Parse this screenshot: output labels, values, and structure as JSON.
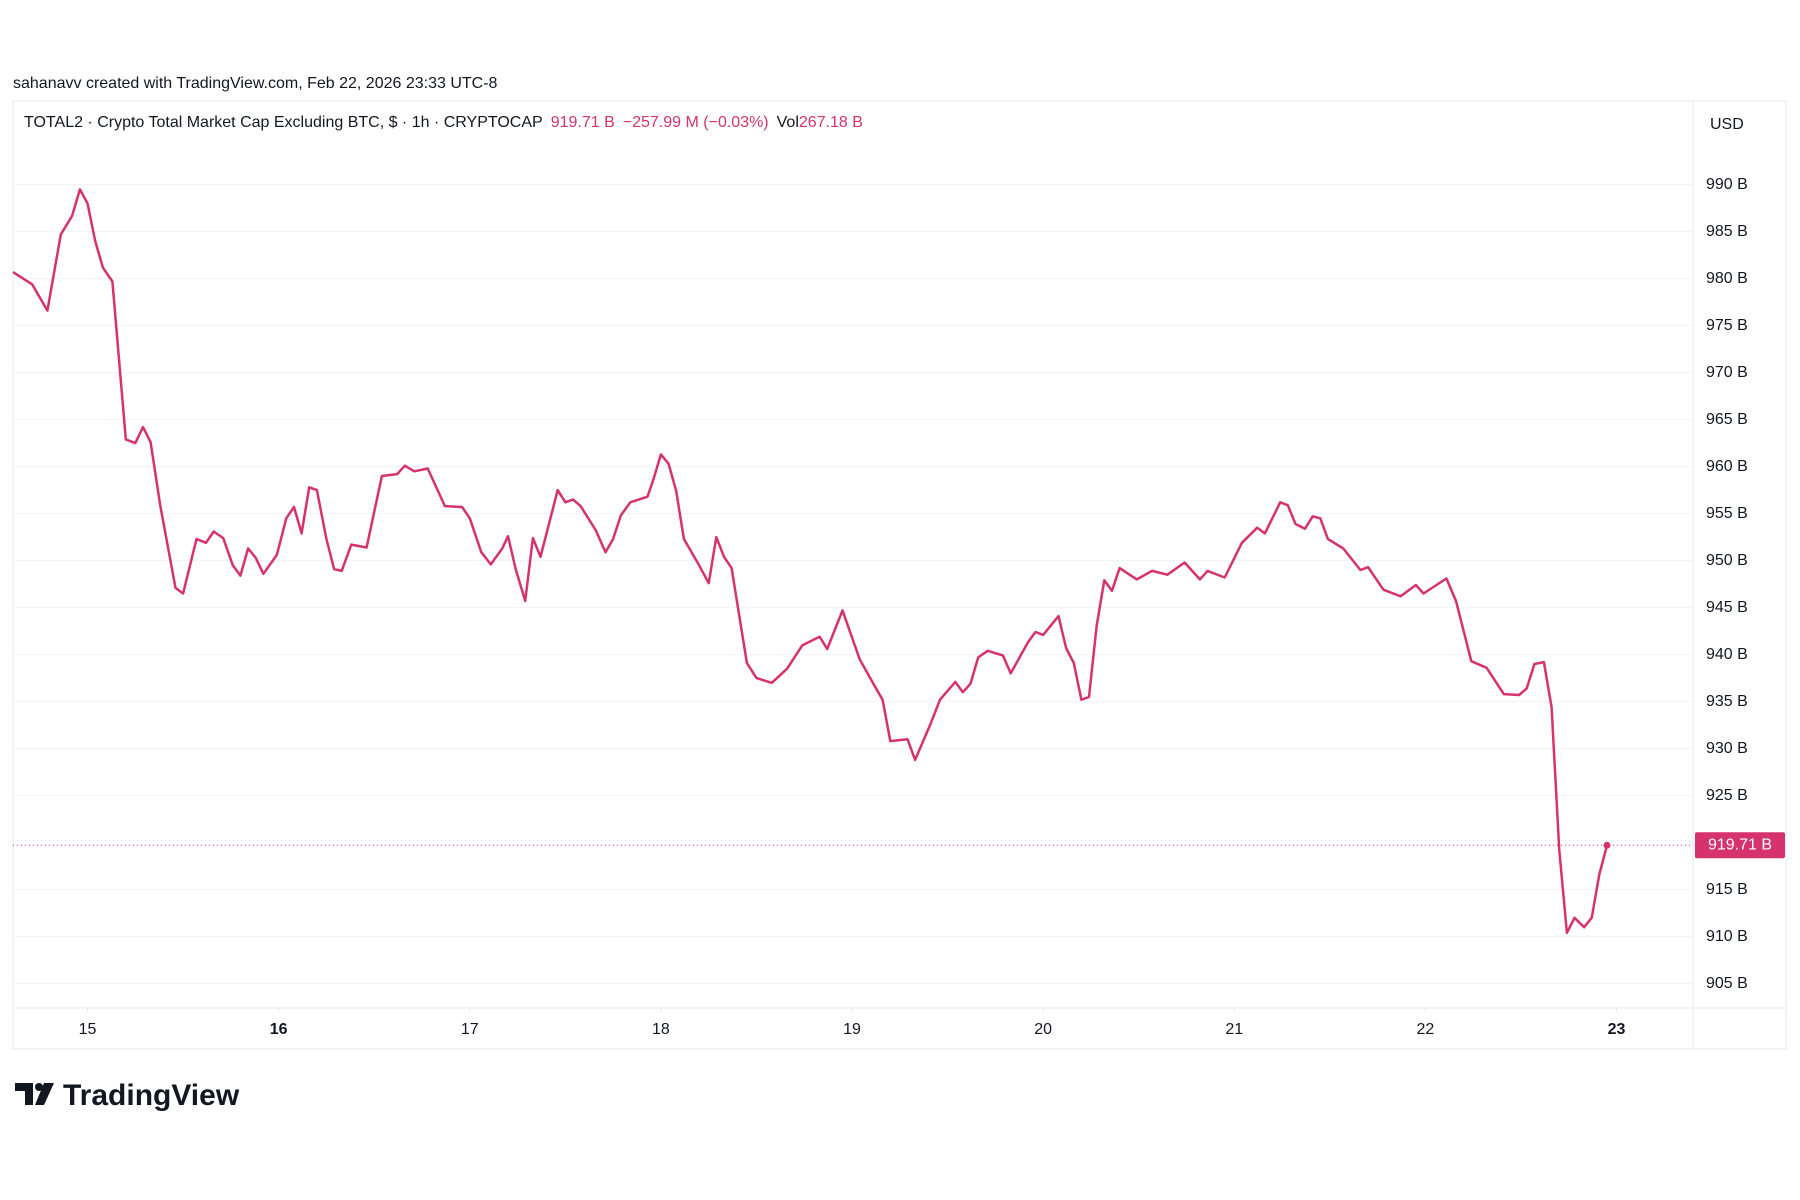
{
  "chart_data": {
    "type": "line",
    "credit": "sahanavv created with TradingView.com, Feb 22, 2026 23:33 UTC-8",
    "symbol": "TOTAL2 · Crypto Total Market Cap Excluding BTC, $ · 1h · CRYPTOCAP",
    "price": "919.71 B",
    "change": "−257.99 M (−0.03%)",
    "volume_label": "Vol",
    "volume": "267.18 B",
    "currency": "USD",
    "brand": "TradingView",
    "color": "#d6336c",
    "grid": true,
    "xlim": [
      14.61,
      23.4
    ],
    "xticks": [
      15,
      16,
      17,
      18,
      19,
      20,
      21,
      22,
      23
    ],
    "xtick_bold": [
      false,
      true,
      false,
      false,
      false,
      false,
      false,
      false,
      true
    ],
    "ylim": [
      902.4,
      998.9
    ],
    "yticks": [
      {
        "value": 905,
        "label": "905 B"
      },
      {
        "value": 910,
        "label": "910 B"
      },
      {
        "value": 915,
        "label": "915 B"
      },
      {
        "value": 925,
        "label": "925 B"
      },
      {
        "value": 930,
        "label": "930 B"
      },
      {
        "value": 935,
        "label": "935 B"
      },
      {
        "value": 940,
        "label": "940 B"
      },
      {
        "value": 945,
        "label": "945 B"
      },
      {
        "value": 950,
        "label": "950 B"
      },
      {
        "value": 955,
        "label": "955 B"
      },
      {
        "value": 960,
        "label": "960 B"
      },
      {
        "value": 965,
        "label": "965 B"
      },
      {
        "value": 970,
        "label": "970 B"
      },
      {
        "value": 975,
        "label": "975 B"
      },
      {
        "value": 980,
        "label": "980 B"
      },
      {
        "value": 985,
        "label": "985 B"
      },
      {
        "value": 990,
        "label": "990 B"
      }
    ],
    "x": [
      14.61,
      14.71,
      14.79,
      14.86,
      14.92,
      14.96,
      15.0,
      15.04,
      15.08,
      15.13,
      15.2,
      15.25,
      15.29,
      15.33,
      15.38,
      15.46,
      15.5,
      15.57,
      15.62,
      15.66,
      15.71,
      15.76,
      15.8,
      15.84,
      15.88,
      15.92,
      15.99,
      16.04,
      16.08,
      16.12,
      16.16,
      16.2,
      16.25,
      16.29,
      16.33,
      16.38,
      16.46,
      16.54,
      16.62,
      16.66,
      16.71,
      16.78,
      16.87,
      16.96,
      17.0,
      17.06,
      17.11,
      17.17,
      17.2,
      17.24,
      17.29,
      17.33,
      17.37,
      17.46,
      17.5,
      17.54,
      17.58,
      17.66,
      17.71,
      17.75,
      17.79,
      17.84,
      17.93,
      17.96,
      18.0,
      18.04,
      18.08,
      18.12,
      18.2,
      18.25,
      18.29,
      18.33,
      18.37,
      18.45,
      18.5,
      18.58,
      18.66,
      18.74,
      18.83,
      18.87,
      18.95,
      19.04,
      19.12,
      19.16,
      19.2,
      19.29,
      19.33,
      19.41,
      19.46,
      19.54,
      19.58,
      19.62,
      19.66,
      19.71,
      19.79,
      19.83,
      19.92,
      19.96,
      20.0,
      20.08,
      20.12,
      20.16,
      20.2,
      20.24,
      20.28,
      20.32,
      20.36,
      20.4,
      20.49,
      20.57,
      20.65,
      20.74,
      20.82,
      20.86,
      20.95,
      21.04,
      21.12,
      21.16,
      21.24,
      21.28,
      21.32,
      21.37,
      21.41,
      21.45,
      21.49,
      21.57,
      21.66,
      21.7,
      21.78,
      21.87,
      21.95,
      21.99,
      22.11,
      22.16,
      22.24,
      22.32,
      22.41,
      22.49,
      22.53,
      22.57,
      22.62,
      22.66,
      22.7,
      22.74,
      22.78,
      22.83,
      22.87,
      22.91,
      22.95
    ],
    "values": [
      980.7,
      979.4,
      976.6,
      984.7,
      986.7,
      989.5,
      988.0,
      984.0,
      981.2,
      979.7,
      962.9,
      962.5,
      964.2,
      962.6,
      955.9,
      947.1,
      946.5,
      952.3,
      951.9,
      953.1,
      952.4,
      949.5,
      948.4,
      951.3,
      950.3,
      948.6,
      950.6,
      954.5,
      955.7,
      952.9,
      957.8,
      957.5,
      952.3,
      949.1,
      948.9,
      951.7,
      951.4,
      959.0,
      959.2,
      960.1,
      959.5,
      959.8,
      955.8,
      955.7,
      954.5,
      950.9,
      949.6,
      951.3,
      952.6,
      949.1,
      945.7,
      952.4,
      950.4,
      957.5,
      956.2,
      956.5,
      955.8,
      953.2,
      950.9,
      952.3,
      954.8,
      956.2,
      956.8,
      958.6,
      961.3,
      960.3,
      957.4,
      952.3,
      949.5,
      947.6,
      952.5,
      950.4,
      949.2,
      939.1,
      937.5,
      937.0,
      938.5,
      941.0,
      941.9,
      940.6,
      944.7,
      939.5,
      936.6,
      935.2,
      930.8,
      931.0,
      928.8,
      932.6,
      935.2,
      937.1,
      936.0,
      936.9,
      939.7,
      940.4,
      939.9,
      938.0,
      941.3,
      942.4,
      942.1,
      944.1,
      940.7,
      939.1,
      935.2,
      935.5,
      943.1,
      947.9,
      946.8,
      949.2,
      948.0,
      948.9,
      948.5,
      949.8,
      948.0,
      948.9,
      948.2,
      951.9,
      953.5,
      952.9,
      956.2,
      955.9,
      953.9,
      953.4,
      954.7,
      954.5,
      952.3,
      951.3,
      949.0,
      949.3,
      946.9,
      946.2,
      947.4,
      946.5,
      948.1,
      945.7,
      939.3,
      938.6,
      935.8,
      935.7,
      936.4,
      939.0,
      939.2,
      934.4,
      919.3,
      910.4,
      912.0,
      911.0,
      912.0,
      916.6,
      919.71
    ]
  }
}
